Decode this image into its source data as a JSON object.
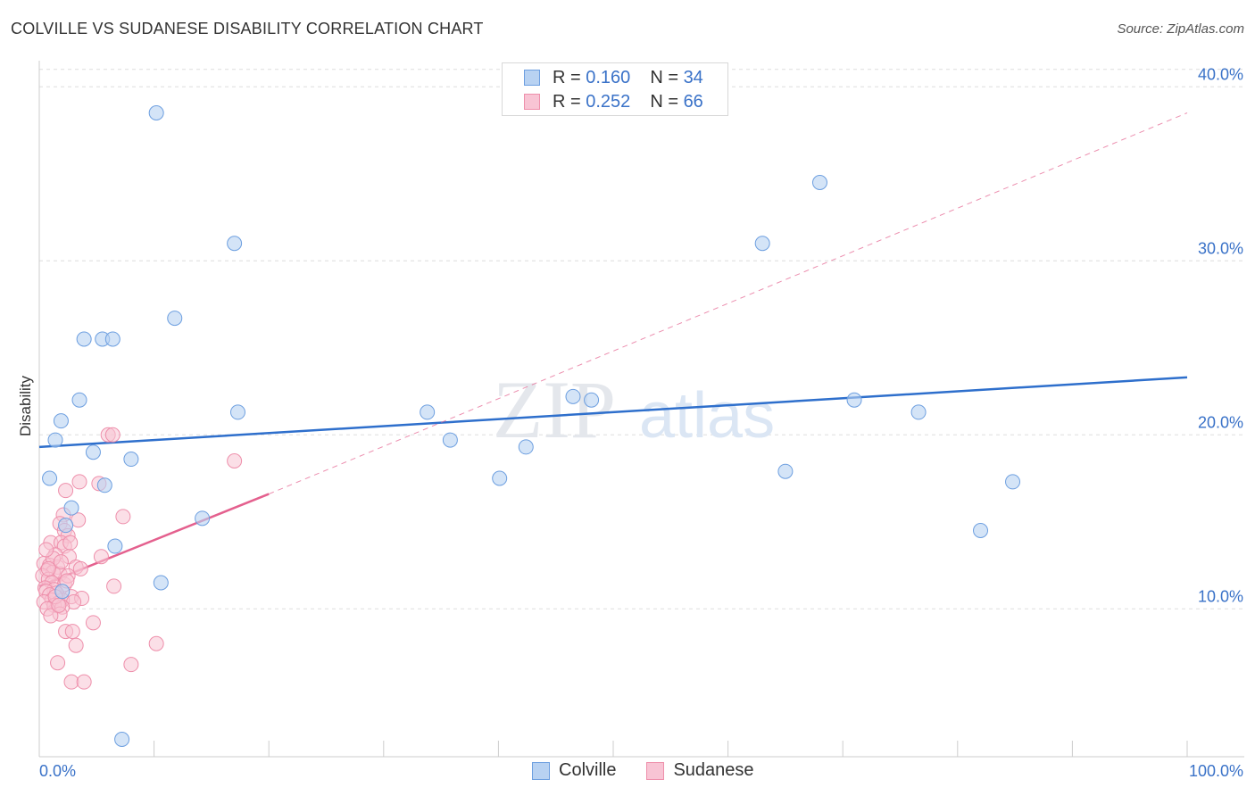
{
  "header": {
    "title": "COLVILLE VS SUDANESE DISABILITY CORRELATION CHART",
    "source": "Source: ZipAtlas.com"
  },
  "legend": {
    "rows": [
      {
        "r_label": "R =",
        "r_value": "0.160",
        "n_label": "N =",
        "n_value": "34"
      },
      {
        "r_label": "R =",
        "r_value": "0.252",
        "n_label": "N =",
        "n_value": "66"
      }
    ],
    "bottom": [
      "Colville",
      "Sudanese"
    ]
  },
  "watermark": {
    "zip": "ZIP",
    "atlas": "atlas"
  },
  "colors": {
    "colville_fill": "#b8d2f2",
    "colville_stroke": "#6d9fe0",
    "colville_line": "#2e6fcc",
    "sudanese_fill": "#f8c4d4",
    "sudanese_stroke": "#ee8fab",
    "sudanese_line": "#e4608e",
    "axis_text": "#3a72c8",
    "grid": "#dddddd"
  },
  "chart_data": {
    "type": "scatter",
    "title": "COLVILLE VS SUDANESE DISABILITY CORRELATION CHART",
    "xlabel": "",
    "ylabel": "Disability",
    "xlim": [
      0,
      100
    ],
    "ylim": [
      1.5,
      41.5
    ],
    "x_tick_labels": [
      "0.0%",
      "100.0%"
    ],
    "y_ticks": [
      10,
      20,
      30,
      40
    ],
    "y_tick_labels": [
      "10.0%",
      "20.0%",
      "30.0%",
      "40.0%"
    ],
    "grid": "horizontal dashed",
    "series": [
      {
        "name": "Colville",
        "points": [
          [
            10.2,
            38.5
          ],
          [
            17.0,
            31.0
          ],
          [
            68.0,
            34.5
          ],
          [
            63.0,
            31.0
          ],
          [
            11.8,
            26.7
          ],
          [
            3.9,
            25.5
          ],
          [
            5.5,
            25.5
          ],
          [
            6.4,
            25.5
          ],
          [
            3.5,
            22.0
          ],
          [
            17.3,
            21.3
          ],
          [
            33.8,
            21.3
          ],
          [
            46.5,
            22.2
          ],
          [
            48.1,
            22.0
          ],
          [
            71.0,
            22.0
          ],
          [
            76.6,
            21.3
          ],
          [
            1.9,
            20.8
          ],
          [
            1.4,
            19.7
          ],
          [
            35.8,
            19.7
          ],
          [
            42.4,
            19.3
          ],
          [
            4.7,
            19.0
          ],
          [
            8.0,
            18.6
          ],
          [
            65.0,
            17.9
          ],
          [
            40.1,
            17.5
          ],
          [
            84.8,
            17.3
          ],
          [
            0.9,
            17.5
          ],
          [
            5.7,
            17.1
          ],
          [
            2.8,
            15.8
          ],
          [
            14.2,
            15.2
          ],
          [
            2.3,
            14.8
          ],
          [
            82.0,
            14.5
          ],
          [
            6.6,
            13.6
          ],
          [
            10.6,
            11.5
          ],
          [
            7.2,
            2.5
          ],
          [
            2.0,
            11.0
          ]
        ],
        "trend": {
          "x": [
            0,
            100
          ],
          "y": [
            19.3,
            23.3
          ]
        }
      },
      {
        "name": "Sudanese",
        "points": [
          [
            6.0,
            20.0
          ],
          [
            6.4,
            20.0
          ],
          [
            17.0,
            18.5
          ],
          [
            3.5,
            17.3
          ],
          [
            5.2,
            17.2
          ],
          [
            2.3,
            16.8
          ],
          [
            7.3,
            15.3
          ],
          [
            2.1,
            15.4
          ],
          [
            3.4,
            15.1
          ],
          [
            1.8,
            14.9
          ],
          [
            2.2,
            14.5
          ],
          [
            2.5,
            14.2
          ],
          [
            1.0,
            13.8
          ],
          [
            1.9,
            13.8
          ],
          [
            2.2,
            13.6
          ],
          [
            2.7,
            13.8
          ],
          [
            1.4,
            13.1
          ],
          [
            2.6,
            13.0
          ],
          [
            5.4,
            13.0
          ],
          [
            0.4,
            12.6
          ],
          [
            0.9,
            12.5
          ],
          [
            1.6,
            12.4
          ],
          [
            3.2,
            12.4
          ],
          [
            0.7,
            12.2
          ],
          [
            1.2,
            12.1
          ],
          [
            1.8,
            12.0
          ],
          [
            0.3,
            11.9
          ],
          [
            0.8,
            11.7
          ],
          [
            1.1,
            11.5
          ],
          [
            2.2,
            11.4
          ],
          [
            6.5,
            11.3
          ],
          [
            0.5,
            11.2
          ],
          [
            1.3,
            11.1
          ],
          [
            0.6,
            11.0
          ],
          [
            1.5,
            10.9
          ],
          [
            0.9,
            10.8
          ],
          [
            2.8,
            10.7
          ],
          [
            3.7,
            10.6
          ],
          [
            1.1,
            10.5
          ],
          [
            2.0,
            10.5
          ],
          [
            0.4,
            10.4
          ],
          [
            1.6,
            10.3
          ],
          [
            3.0,
            10.4
          ],
          [
            1.3,
            10.2
          ],
          [
            2.0,
            10.1
          ],
          [
            0.7,
            10.0
          ],
          [
            1.8,
            9.7
          ],
          [
            1.0,
            9.6
          ],
          [
            4.7,
            9.2
          ],
          [
            2.3,
            8.7
          ],
          [
            2.9,
            8.7
          ],
          [
            3.2,
            7.9
          ],
          [
            10.2,
            8.0
          ],
          [
            1.6,
            6.9
          ],
          [
            8.0,
            6.8
          ],
          [
            2.8,
            5.8
          ],
          [
            3.9,
            5.8
          ],
          [
            1.2,
            12.9
          ],
          [
            2.5,
            11.9
          ],
          [
            0.6,
            13.4
          ],
          [
            1.9,
            12.7
          ],
          [
            3.6,
            12.3
          ],
          [
            1.4,
            10.7
          ],
          [
            2.4,
            11.6
          ],
          [
            0.8,
            12.3
          ],
          [
            1.7,
            10.2
          ]
        ],
        "trend": {
          "x": [
            0,
            20
          ],
          "y": [
            11.3,
            16.6
          ]
        },
        "trend_extension": {
          "x": [
            20,
            100
          ],
          "y": [
            16.6,
            38.5
          ]
        }
      }
    ]
  }
}
